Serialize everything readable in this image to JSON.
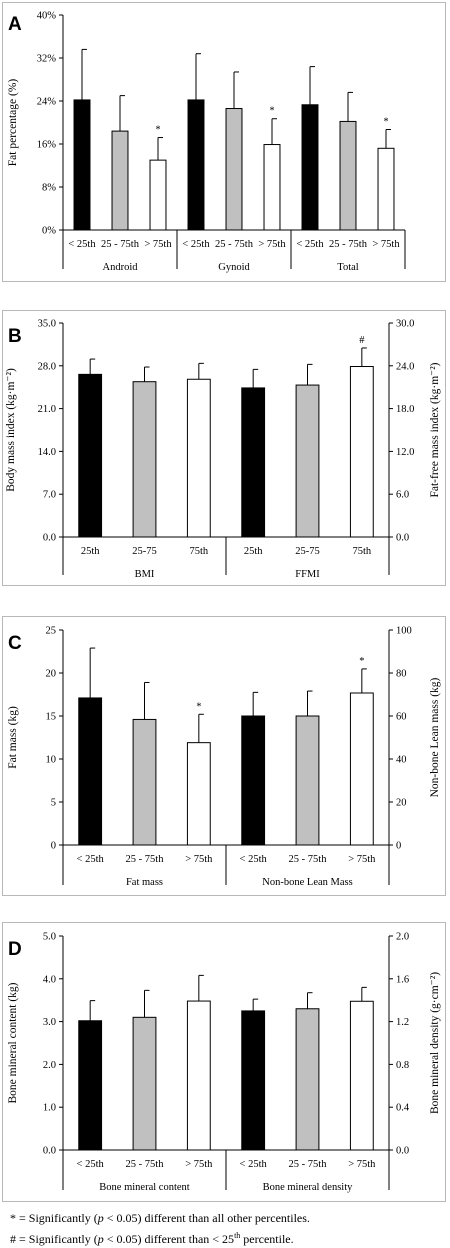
{
  "colors": {
    "black": "#000000",
    "gray": "#c0c0c0",
    "white": "#ffffff",
    "axis": "#000000"
  },
  "chart_data": [
    {
      "panel": "A",
      "type": "bar",
      "ylabel": "Fat percentage (%)",
      "ylim": [
        0,
        40
      ],
      "yticks": [
        "0%",
        "8%",
        "16%",
        "24%",
        "32%",
        "40%"
      ],
      "groups": [
        "Android",
        "Gynoid",
        "Total"
      ],
      "categories": [
        "< 25th",
        "25 - 75th",
        "> 75th"
      ],
      "series": [
        {
          "group": "Android",
          "values": [
            24.2,
            18.4,
            13.0
          ],
          "errors": [
            9.4,
            6.6,
            4.2
          ],
          "markers": [
            "",
            "",
            "*"
          ]
        },
        {
          "group": "Gynoid",
          "values": [
            24.2,
            22.6,
            15.9
          ],
          "errors": [
            8.6,
            6.8,
            4.8
          ],
          "markers": [
            "",
            "",
            "*"
          ]
        },
        {
          "group": "Total",
          "values": [
            23.3,
            20.2,
            15.2
          ],
          "errors": [
            7.1,
            5.4,
            3.5
          ],
          "markers": [
            "",
            "",
            "*"
          ]
        }
      ]
    },
    {
      "panel": "B",
      "type": "bar",
      "ylabel": "Body mass index (kg·m⁻²)",
      "ylabel2": "Fat-free mass index (kg·m⁻²)",
      "ylim": [
        0,
        35
      ],
      "ylim2": [
        0,
        30
      ],
      "yticks": [
        "0.0",
        "7.0",
        "14.0",
        "21.0",
        "28.0",
        "35.0"
      ],
      "yticks2": [
        "0.0",
        "6.0",
        "12.0",
        "18.0",
        "24.0",
        "30.0"
      ],
      "groups": [
        "BMI",
        "FFMI"
      ],
      "categories": [
        "25th",
        "25-75",
        "75th"
      ],
      "series": [
        {
          "group": "BMI",
          "axis": "left",
          "values": [
            26.6,
            25.4,
            25.8
          ],
          "errors": [
            2.5,
            2.4,
            2.6
          ],
          "markers": [
            "",
            "",
            ""
          ]
        },
        {
          "group": "FFMI",
          "axis": "right",
          "values": [
            20.9,
            21.3,
            23.9
          ],
          "errors": [
            2.6,
            2.9,
            2.6
          ],
          "markers": [
            "",
            "",
            "#"
          ]
        }
      ]
    },
    {
      "panel": "C",
      "type": "bar",
      "ylabel": "Fat mass (kg)",
      "ylabel2": "Non-bone Lean mass (kg)",
      "ylim": [
        0,
        25
      ],
      "ylim2": [
        0,
        100
      ],
      "yticks": [
        "0",
        "5",
        "10",
        "15",
        "20",
        "25"
      ],
      "yticks2": [
        "0",
        "20",
        "40",
        "60",
        "80",
        "100"
      ],
      "groups": [
        "Fat mass",
        "Non-bone Lean Mass"
      ],
      "categories": [
        "< 25th",
        "25 - 75th",
        "> 75th"
      ],
      "series": [
        {
          "group": "Fat mass",
          "axis": "left",
          "values": [
            17.1,
            14.6,
            11.9
          ],
          "errors": [
            5.8,
            4.3,
            3.3
          ],
          "markers": [
            "",
            "",
            "*"
          ]
        },
        {
          "group": "Non-bone Lean Mass",
          "axis": "right",
          "values": [
            60.0,
            60.0,
            70.7
          ],
          "errors": [
            11.0,
            11.6,
            11.2
          ],
          "markers": [
            "",
            "",
            "*"
          ]
        }
      ]
    },
    {
      "panel": "D",
      "type": "bar",
      "ylabel": "Bone mineral content (kg)",
      "ylabel2": "Bone mineral density (g·cm⁻²)",
      "ylim": [
        0,
        5
      ],
      "ylim2": [
        0,
        2
      ],
      "yticks": [
        "0.0",
        "1.0",
        "2.0",
        "3.0",
        "4.0",
        "5.0"
      ],
      "yticks2": [
        "0.0",
        "0.4",
        "0.8",
        "1.2",
        "1.6",
        "2.0"
      ],
      "groups": [
        "Bone mineral content",
        "Bone mineral density"
      ],
      "categories": [
        "< 25th",
        "25 - 75th",
        "> 75th"
      ],
      "series": [
        {
          "group": "Bone mineral content",
          "axis": "left",
          "values": [
            3.02,
            3.1,
            3.48
          ],
          "errors": [
            0.47,
            0.63,
            0.6
          ],
          "markers": [
            "",
            "",
            ""
          ]
        },
        {
          "group": "Bone mineral density",
          "axis": "right",
          "values": [
            1.3,
            1.32,
            1.39
          ],
          "errors": [
            0.11,
            0.15,
            0.13
          ],
          "markers": [
            "",
            "",
            ""
          ]
        }
      ]
    }
  ],
  "footnotes": {
    "star_prefix": "* = Significantly (",
    "star_p": "p",
    "star_suffix": " < 0.05) different than all other percentiles.",
    "hash_prefix": "# = Significantly (",
    "hash_p": "p",
    "hash_suffix": " < 0.05) different than < 25",
    "hash_sup": "th",
    "hash_end": " percentile."
  }
}
